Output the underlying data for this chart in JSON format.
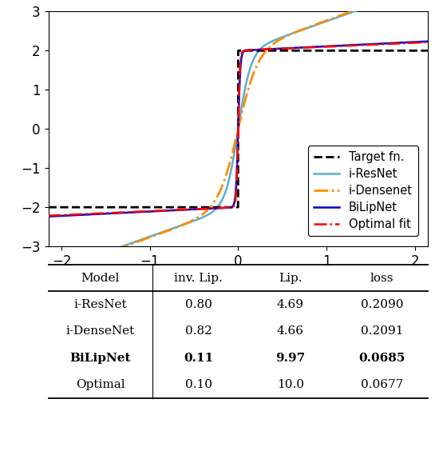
{
  "xlim": [
    -2.15,
    2.15
  ],
  "ylim": [
    -3.0,
    3.0
  ],
  "xticks": [
    -2,
    -1,
    0,
    1,
    2
  ],
  "yticks": [
    -3,
    -2,
    -1,
    0,
    1,
    2,
    3
  ],
  "legend_entries": [
    "Target fn.",
    "i-ResNet",
    "i-Densenet",
    "BiLipNet",
    "Optimal fit"
  ],
  "table_headers": [
    "Model",
    "inv. Lip.",
    "Lip.",
    "loss"
  ],
  "table_rows": [
    [
      "i-ResNet",
      "0.80",
      "4.69",
      "0.2090"
    ],
    [
      "i-DenseNet",
      "0.82",
      "4.66",
      "0.2091"
    ],
    [
      "BiLipNet",
      "0.11",
      "9.97",
      "0.0685"
    ],
    [
      "Optimal",
      "0.10",
      "10.0",
      "0.0677"
    ]
  ],
  "bold_row": 2,
  "colors": {
    "target": "#000000",
    "iresnet": "#5aafcf",
    "idensenet": "#ff8c00",
    "bilipnet": "#0000cc",
    "optimal": "#ff0000"
  },
  "iresnet_params": {
    "inv_lip": 0.8,
    "amp": 1.95,
    "steep": 7.0
  },
  "idensenet_params": {
    "inv_lip": 0.82,
    "amp": 1.95,
    "steep": 4.5
  },
  "bilipnet_params": {
    "inv_lip": 0.11,
    "amp": 2.0,
    "steep": 40.0
  },
  "optimal_params": {
    "inv_lip": 0.1,
    "amp": 2.0,
    "steep": 50.0
  }
}
